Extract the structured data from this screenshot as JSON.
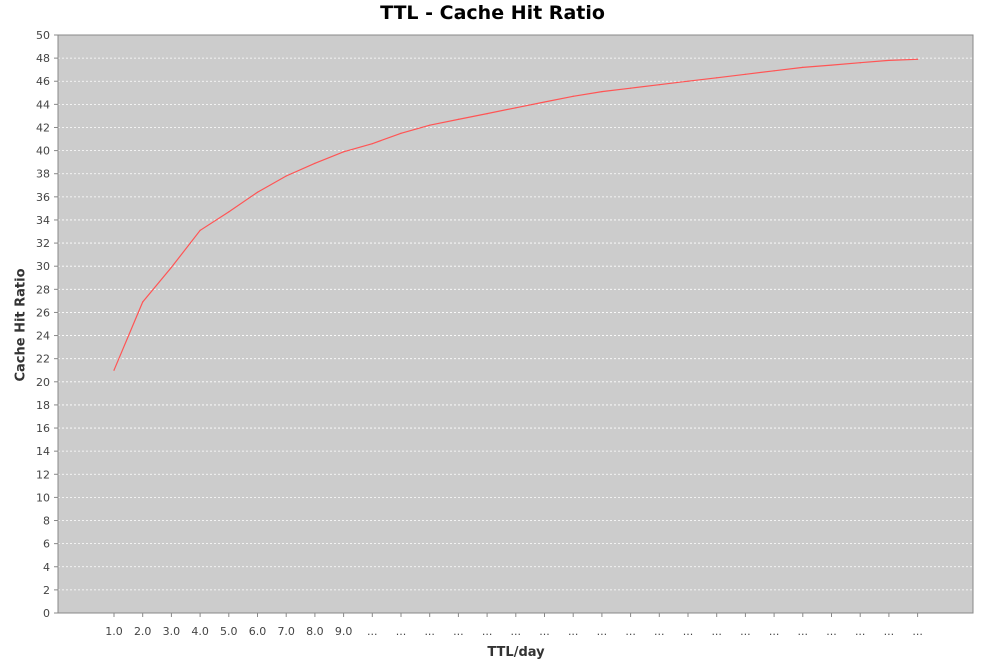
{
  "chart_data": {
    "type": "line",
    "title": "TTL - Cache Hit Ratio",
    "xlabel": "TTL/day",
    "ylabel": "Cache Hit Ratio",
    "categories": [
      "1.0",
      "2.0",
      "3.0",
      "4.0",
      "5.0",
      "6.0",
      "7.0",
      "8.0",
      "9.0",
      "...",
      "...",
      "...",
      "...",
      "...",
      "...",
      "...",
      "...",
      "...",
      "...",
      "...",
      "...",
      "...",
      "...",
      "...",
      "...",
      "...",
      "...",
      "...",
      "..."
    ],
    "series": [
      {
        "values": [
          21.0,
          26.9,
          29.9,
          33.1,
          34.7,
          36.4,
          37.8,
          38.9,
          39.9,
          40.6,
          41.5,
          42.2,
          42.7,
          43.2,
          43.7,
          44.2,
          44.7,
          45.1,
          45.4,
          45.7,
          46.0,
          46.3,
          46.6,
          46.9,
          47.2,
          47.4,
          47.6,
          47.8,
          47.9
        ],
        "color": "#ff5555"
      }
    ],
    "ylim": [
      0,
      50
    ],
    "yticks": [
      0,
      2,
      4,
      6,
      8,
      10,
      12,
      14,
      16,
      18,
      20,
      22,
      24,
      26,
      28,
      30,
      32,
      34,
      36,
      38,
      40,
      42,
      44,
      46,
      48,
      50
    ],
    "grid": true,
    "plot_background": "#cccccc",
    "grid_color": "#ffffff"
  }
}
